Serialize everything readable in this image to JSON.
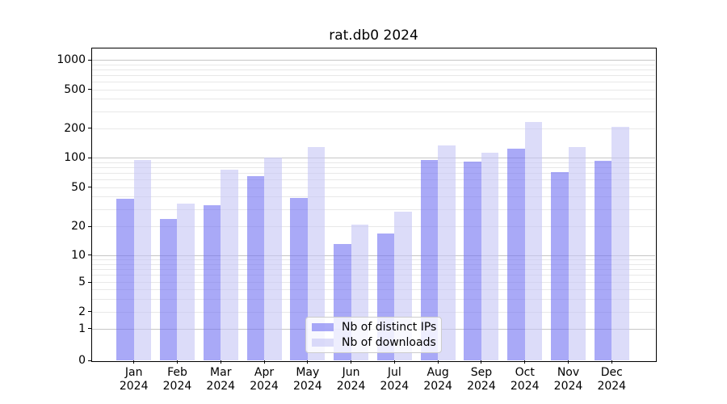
{
  "chart_data": {
    "type": "bar",
    "title": "rat.db0 2024",
    "x_axis": {
      "months": [
        "Jan",
        "Feb",
        "Mar",
        "Apr",
        "May",
        "Jun",
        "Jul",
        "Aug",
        "Sep",
        "Oct",
        "Nov",
        "Dec"
      ],
      "year": "2024"
    },
    "y_axis": {
      "scale": "symlog",
      "ticks": [
        0,
        1,
        2,
        5,
        10,
        20,
        50,
        100,
        200,
        500,
        1000
      ],
      "ylim": [
        0,
        1300
      ],
      "grid": true
    },
    "series": [
      {
        "name": "Nb of distinct IPs",
        "color": "rgba(112,112,242,0.6)",
        "values": [
          38,
          24,
          33,
          65,
          39,
          13,
          17,
          95,
          92,
          124,
          71,
          94
        ]
      },
      {
        "name": "Nb of downloads",
        "color": "rgba(197,197,245,0.6)",
        "values": [
          95,
          34,
          75,
          100,
          130,
          21,
          28,
          134,
          112,
          233,
          130,
          207
        ]
      }
    ],
    "legend": {
      "position": "lower center"
    }
  }
}
